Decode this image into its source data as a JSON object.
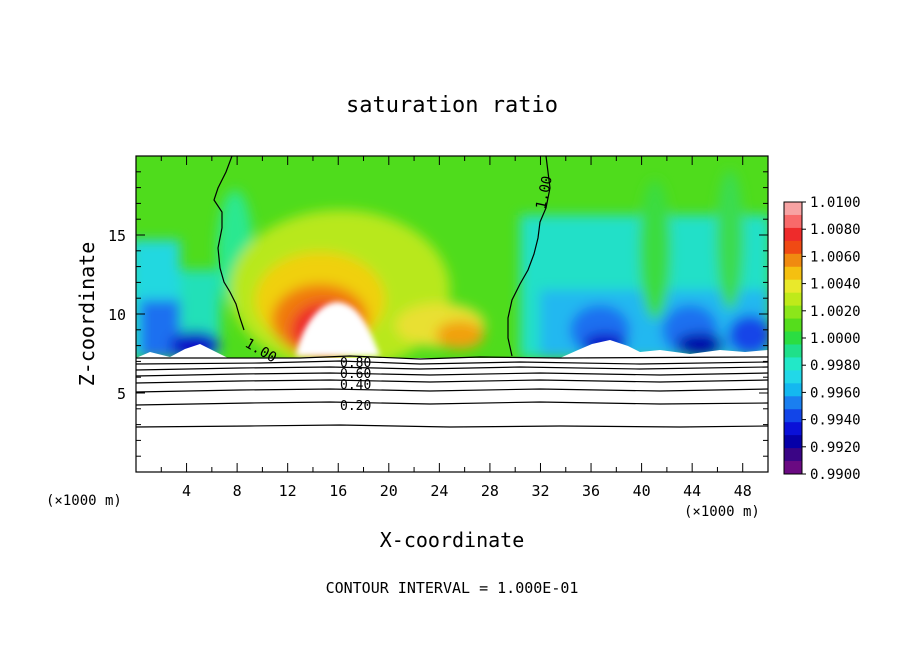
{
  "chart_data": {
    "type": "heatmap",
    "title": "saturation ratio",
    "xlabel": "X-coordinate",
    "ylabel": "Z-coordinate",
    "x_unit": "(×1000 m)",
    "x_unit_right": "(×1000 m)",
    "footer": "CONTOUR INTERVAL = 1.000E-01",
    "xlim": [
      0,
      50
    ],
    "ylim": [
      0,
      20
    ],
    "x_ticks": [
      4,
      8,
      12,
      16,
      20,
      24,
      28,
      32,
      36,
      40,
      44,
      48
    ],
    "y_ticks": [
      5,
      10,
      15
    ],
    "colorbar": {
      "labels": [
        "1.0100",
        "1.0080",
        "1.0060",
        "1.0040",
        "1.0020",
        "1.0000",
        "0.9980",
        "0.9960",
        "0.9940",
        "0.9920",
        "0.9900"
      ],
      "colors": [
        "#F7A3A3",
        "#F86A6A",
        "#EE2B2B",
        "#F04A14",
        "#F08A10",
        "#F5C010",
        "#E9E92B",
        "#BFEA1A",
        "#8CE61A",
        "#55DD1C",
        "#2BDD42",
        "#1FE08A",
        "#22E8C8",
        "#22D8E8",
        "#14B8F0",
        "#1A7FF0",
        "#1245E8",
        "#0A10D8",
        "#0600A8",
        "#3A0585",
        "#6A0A82"
      ]
    },
    "contour_labels": [
      "1.00",
      "1.00",
      "1.00",
      "0.80",
      "0.60",
      "0.40",
      "0.20"
    ],
    "contour_levels": [
      0.2,
      0.4,
      0.6,
      0.8,
      1.0
    ],
    "ground_height": 7.2
  }
}
